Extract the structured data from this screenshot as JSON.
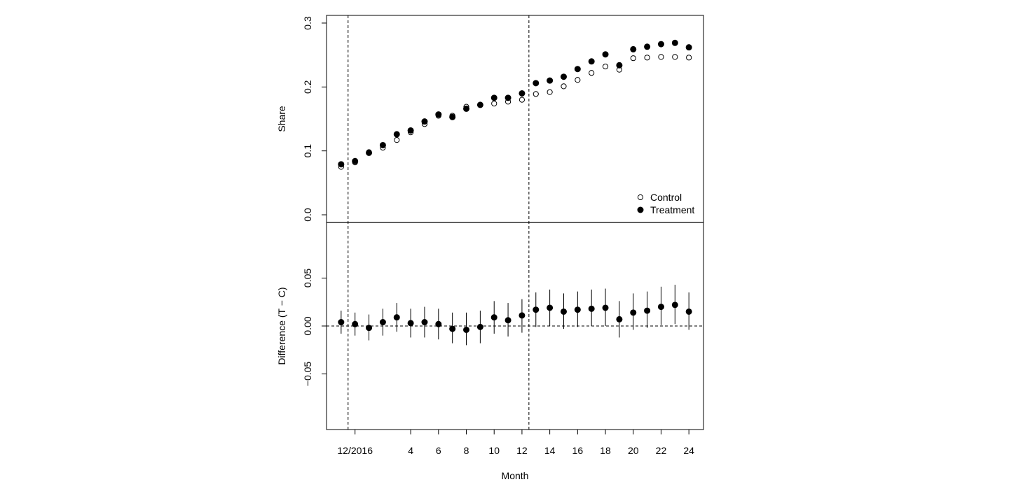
{
  "chart_data": [
    {
      "type": "scatter",
      "ylabel": "Share",
      "ylim": [
        -0.012,
        0.312
      ],
      "yticks": [
        "0.0",
        "0.1",
        "0.2",
        "0.3"
      ],
      "ytick_values": [
        0.0,
        0.1,
        0.2,
        0.3
      ],
      "vlines": [
        -0.5,
        12.5
      ],
      "legend": {
        "placement": "bottom-right",
        "entries": [
          "Control",
          "Treatment"
        ]
      },
      "series": [
        {
          "name": "Control",
          "marker": "open-circle",
          "x": [
            -1,
            0,
            1,
            2,
            3,
            4,
            5,
            6,
            7,
            8,
            9,
            10,
            11,
            12,
            13,
            14,
            15,
            16,
            17,
            18,
            19,
            20,
            21,
            22,
            23,
            24
          ],
          "y": [
            0.075,
            0.082,
            0.098,
            0.105,
            0.117,
            0.129,
            0.142,
            0.155,
            0.155,
            0.169,
            0.172,
            0.174,
            0.177,
            0.18,
            0.189,
            0.192,
            0.201,
            0.211,
            0.222,
            0.232,
            0.227,
            0.245,
            0.246,
            0.247,
            0.247,
            0.246
          ]
        },
        {
          "name": "Treatment",
          "marker": "filled-circle",
          "x": [
            -1,
            0,
            1,
            2,
            3,
            4,
            5,
            6,
            7,
            8,
            9,
            10,
            11,
            12,
            13,
            14,
            15,
            16,
            17,
            18,
            19,
            20,
            21,
            22,
            23,
            24
          ],
          "y": [
            0.079,
            0.084,
            0.097,
            0.109,
            0.126,
            0.132,
            0.146,
            0.157,
            0.153,
            0.166,
            0.172,
            0.183,
            0.183,
            0.19,
            0.206,
            0.21,
            0.216,
            0.228,
            0.24,
            0.251,
            0.234,
            0.259,
            0.263,
            0.267,
            0.269,
            0.262
          ]
        }
      ]
    },
    {
      "type": "scatter",
      "ylabel": "Difference (T − C)",
      "xlabel": "Month",
      "ylim": [
        -0.108,
        0.108
      ],
      "yticks": [
        "−0.05",
        "0.00",
        "0.05"
      ],
      "ytick_values": [
        -0.05,
        0.0,
        0.05
      ],
      "hline": 0,
      "vlines": [
        -0.5,
        12.5
      ],
      "xticks": [
        "12/2016",
        "4",
        "6",
        "8",
        "10",
        "12",
        "14",
        "16",
        "18",
        "20",
        "22",
        "24"
      ],
      "xtick_values": [
        0,
        4,
        6,
        8,
        10,
        12,
        14,
        16,
        18,
        20,
        22,
        24
      ],
      "xlim": [
        -2.05,
        25.05
      ],
      "series": [
        {
          "name": "",
          "marker": "filled-circle-errorbar",
          "x": [
            -1,
            0,
            1,
            2,
            3,
            4,
            5,
            6,
            7,
            8,
            9,
            10,
            11,
            12,
            13,
            14,
            15,
            16,
            17,
            18,
            19,
            20,
            21,
            22,
            23,
            24
          ],
          "y": [
            0.004,
            0.002,
            -0.002,
            0.004,
            0.009,
            0.003,
            0.004,
            0.002,
            -0.003,
            -0.004,
            -0.001,
            0.009,
            0.006,
            0.011,
            0.017,
            0.019,
            0.015,
            0.017,
            0.018,
            0.019,
            0.007,
            0.014,
            0.016,
            0.02,
            0.022,
            0.015
          ],
          "lower": [
            -0.008,
            -0.01,
            -0.015,
            -0.01,
            -0.006,
            -0.012,
            -0.012,
            -0.014,
            -0.018,
            -0.02,
            -0.018,
            -0.008,
            -0.011,
            -0.007,
            -0.001,
            0.0,
            -0.003,
            -0.001,
            0.0,
            0.0,
            -0.012,
            -0.004,
            -0.002,
            0.001,
            0.002,
            -0.004
          ],
          "upper": [
            0.016,
            0.014,
            0.012,
            0.018,
            0.024,
            0.018,
            0.02,
            0.018,
            0.014,
            0.014,
            0.016,
            0.026,
            0.024,
            0.028,
            0.035,
            0.038,
            0.034,
            0.036,
            0.038,
            0.039,
            0.026,
            0.034,
            0.036,
            0.041,
            0.043,
            0.035
          ]
        }
      ]
    }
  ]
}
